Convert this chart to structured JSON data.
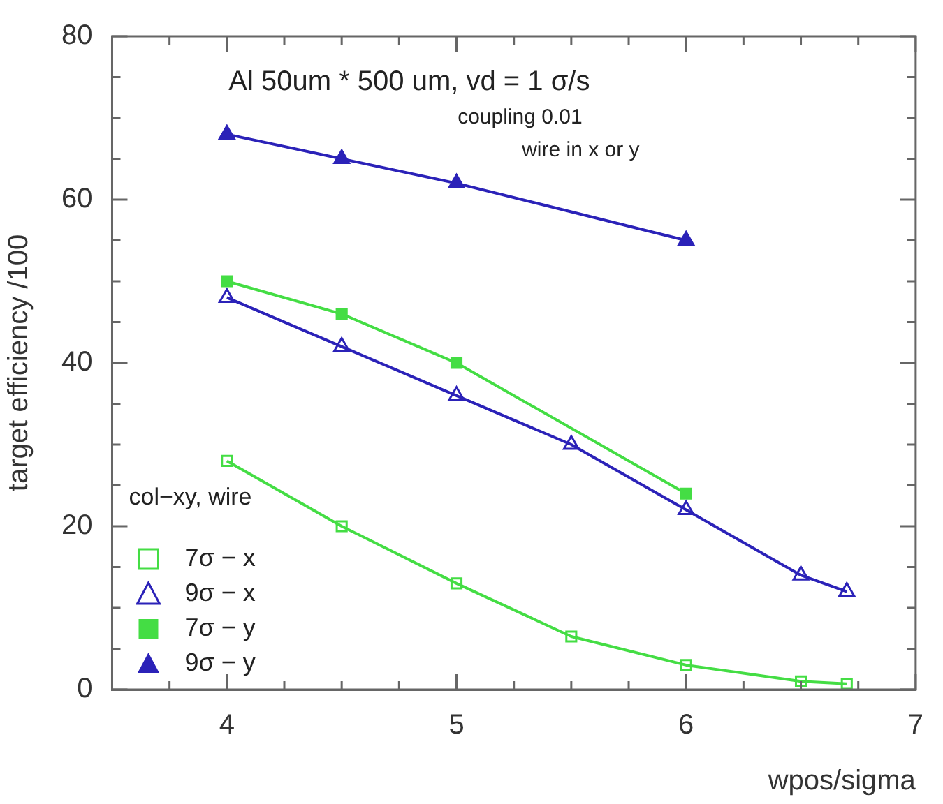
{
  "chart_data": {
    "type": "line",
    "xlabel": "wpos/sigma",
    "ylabel": "target efficiency /100",
    "legend_title": "col−xy, wire",
    "legend": "bottom left",
    "annotations": [
      "Al 50um * 500 um, vd = 1 σ/s",
      "coupling 0.01",
      "wire in x or y"
    ],
    "xlim": [
      3.5,
      7
    ],
    "ylim": [
      0,
      80
    ],
    "xticks": [
      {
        "value": 3.75,
        "label": null
      },
      4,
      {
        "value": 4.25,
        "label": null
      },
      {
        "value": 4.5,
        "label": null
      },
      {
        "value": 4.75,
        "label": null
      },
      5,
      {
        "value": 5.25,
        "label": null
      },
      {
        "value": 5.5,
        "label": null
      },
      {
        "value": 5.75,
        "label": null
      },
      6,
      {
        "value": 6.25,
        "label": null
      },
      {
        "value": 6.5,
        "label": null
      },
      {
        "value": 6.75,
        "label": null
      },
      7
    ],
    "yticks": [
      0,
      {
        "value": 5,
        "label": null
      },
      {
        "value": 10,
        "label": null
      },
      {
        "value": 15,
        "label": null
      },
      20,
      {
        "value": 25,
        "label": null
      },
      {
        "value": 30,
        "label": null
      },
      {
        "value": 35,
        "label": null
      },
      40,
      {
        "value": 45,
        "label": null
      },
      {
        "value": 50,
        "label": null
      },
      {
        "value": 55,
        "label": null
      },
      60,
      {
        "value": 65,
        "label": null
      },
      {
        "value": 70,
        "label": null
      },
      {
        "value": 75,
        "label": null
      },
      80
    ],
    "grid": false,
    "line_style": "solid",
    "series": [
      {
        "name": "7σ − x",
        "color": "#44dd44",
        "marker": "square",
        "x": [
          4,
          4.5,
          5,
          5.5,
          6,
          6.5,
          6.7
        ],
        "values": [
          28,
          20,
          13,
          6.5,
          3,
          1,
          0.7
        ]
      },
      {
        "name": "9σ − x",
        "color": "#2b22b8",
        "marker": "triangle",
        "x": [
          4,
          4.5,
          5,
          5.5,
          6,
          6.5,
          6.7
        ],
        "values": [
          48,
          42,
          36,
          30,
          22,
          14,
          12
        ]
      },
      {
        "name": "7σ − y",
        "color": "#44dd44",
        "marker": "square",
        "x": [
          4,
          4.5,
          5,
          6
        ],
        "values": [
          50,
          46,
          40,
          24
        ]
      },
      {
        "name": "9σ − y",
        "color": "#2b22b8",
        "marker": "triangle",
        "x": [
          4,
          4.5,
          5,
          6
        ],
        "values": [
          68,
          65,
          62,
          55
        ]
      }
    ]
  }
}
